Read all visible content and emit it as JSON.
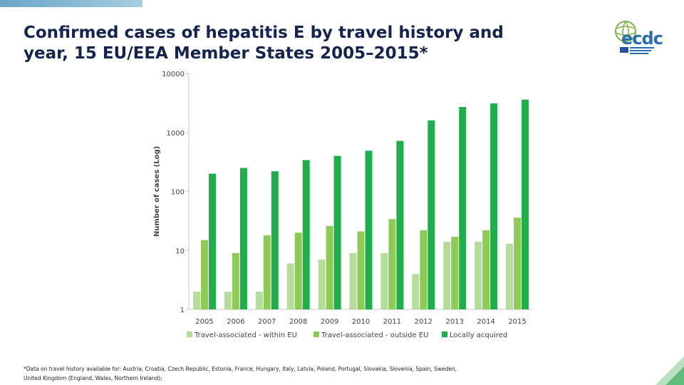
{
  "slide": {
    "title_line1": "Confirmed cases of hepatitis E by travel history and",
    "title_line2": "year, 15 EU/EEA Member States 2005–2015*",
    "logo_text": "ecdc",
    "footnote_line1": "*Data on travel history available for: Austria, Croatia, Czech Republic, Estonia, France, Hungary, Italy, Latvia, Poland, Portugal, Slovakia, Slovenia, Spain, Sweden,",
    "footnote_line2": "United Kingdom (England, Wales, Northern Ireland);"
  },
  "colors": {
    "title": "#15244e",
    "series": [
      "#b5dd9a",
      "#8ccc55",
      "#1fae4b"
    ],
    "axis": "#c9c9c9",
    "accent_top": "#6aa6c9"
  },
  "chart_data": {
    "type": "bar",
    "title": "",
    "xlabel": "",
    "ylabel": "Number of cases (Log)",
    "yscale": "log",
    "ylim": [
      1,
      10000
    ],
    "yticks": [
      1,
      10,
      100,
      1000,
      10000
    ],
    "ytick_labels": [
      "1",
      "10",
      "100",
      "1000",
      "10000"
    ],
    "grid": false,
    "legend_position": "bottom",
    "categories": [
      "2005",
      "2006",
      "2007",
      "2008",
      "2009",
      "2010",
      "2011",
      "2012",
      "2013",
      "2014",
      "2015"
    ],
    "series": [
      {
        "name": "Travel-associated - within EU",
        "values": [
          2,
          2,
          2,
          6,
          7,
          9,
          9,
          4,
          14,
          14,
          13
        ]
      },
      {
        "name": "Travel-associated - outside EU",
        "values": [
          15,
          9,
          18,
          20,
          26,
          21,
          34,
          22,
          17,
          22,
          36
        ]
      },
      {
        "name": "Locally acquired",
        "values": [
          200,
          250,
          220,
          340,
          400,
          490,
          720,
          1600,
          2700,
          3100,
          3600
        ]
      }
    ]
  }
}
